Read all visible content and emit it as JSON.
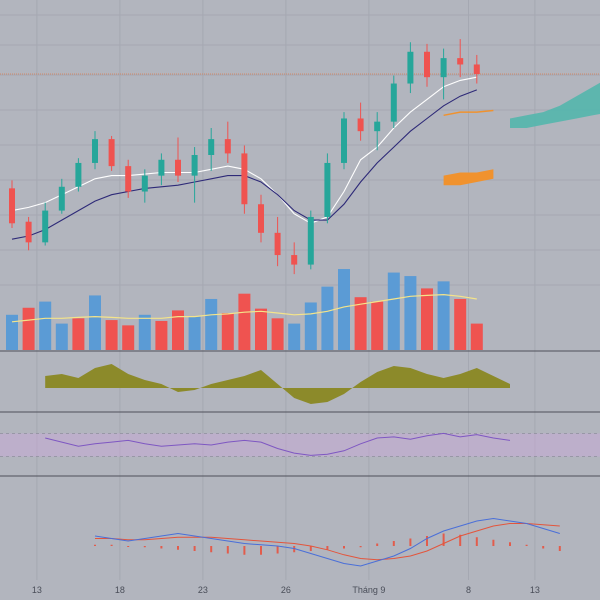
{
  "colors": {
    "background": "#b2b5be",
    "grid": "#a5a8b2",
    "separator": "#4d5059",
    "up": "#26a69a",
    "down": "#ef5350",
    "volume_up": "#5b9bd5",
    "volume_down": "#ef5350",
    "volume_ma": "#f4e48a",
    "kijun": "#ffffff",
    "tenkan": "#2e2a78",
    "price_line": "#e07b4a",
    "cloud_green": "#4db6ac",
    "cloud_orange": "#f0922e",
    "osc_fill": "#8c8a2a",
    "rsi_line": "#7e57c2",
    "rsi_band": "#c6a9d6",
    "macd_line": "#4a6fd8",
    "signal_line": "#e3553c",
    "macd_hist": "#e25c4c",
    "label_text": "#4a4e59"
  },
  "chart_data": {
    "type": "candlestick",
    "indicators": [
      "volume",
      "volume-ma",
      "ichimoku",
      "oscillator",
      "rsi",
      "macd"
    ],
    "grid": true,
    "x_axis_labels": [
      {
        "text": "13",
        "index": 1.5
      },
      {
        "text": "18",
        "index": 6.5
      },
      {
        "text": "23",
        "index": 11.5
      },
      {
        "text": "26",
        "index": 16.5
      },
      {
        "text": "Tháng 9",
        "index": 21.5
      },
      {
        "text": "8",
        "index": 27.5
      },
      {
        "text": "13",
        "index": 31.5
      }
    ],
    "candles": [
      {
        "o": 214,
        "h": 219,
        "l": 189,
        "c": 192
      },
      {
        "o": 193,
        "h": 196,
        "l": 175,
        "c": 180
      },
      {
        "o": 180,
        "h": 205,
        "l": 178,
        "c": 200
      },
      {
        "o": 200,
        "h": 220,
        "l": 198,
        "c": 215
      },
      {
        "o": 215,
        "h": 233,
        "l": 212,
        "c": 230
      },
      {
        "o": 230,
        "h": 250,
        "l": 226,
        "c": 245
      },
      {
        "o": 245,
        "h": 247,
        "l": 225,
        "c": 228
      },
      {
        "o": 228,
        "h": 232,
        "l": 208,
        "c": 212
      },
      {
        "o": 212,
        "h": 226,
        "l": 205,
        "c": 222
      },
      {
        "o": 222,
        "h": 236,
        "l": 216,
        "c": 232
      },
      {
        "o": 232,
        "h": 246,
        "l": 218,
        "c": 222
      },
      {
        "o": 222,
        "h": 240,
        "l": 205,
        "c": 235
      },
      {
        "o": 235,
        "h": 252,
        "l": 225,
        "c": 245
      },
      {
        "o": 245,
        "h": 256,
        "l": 230,
        "c": 236
      },
      {
        "o": 236,
        "h": 241,
        "l": 198,
        "c": 204
      },
      {
        "o": 204,
        "h": 210,
        "l": 180,
        "c": 186
      },
      {
        "o": 186,
        "h": 196,
        "l": 165,
        "c": 172
      },
      {
        "o": 172,
        "h": 180,
        "l": 160,
        "c": 166
      },
      {
        "o": 166,
        "h": 200,
        "l": 163,
        "c": 196
      },
      {
        "o": 196,
        "h": 236,
        "l": 192,
        "c": 230
      },
      {
        "o": 230,
        "h": 262,
        "l": 226,
        "c": 258
      },
      {
        "o": 258,
        "h": 268,
        "l": 244,
        "c": 250
      },
      {
        "o": 250,
        "h": 262,
        "l": 238,
        "c": 256
      },
      {
        "o": 256,
        "h": 285,
        "l": 252,
        "c": 280
      },
      {
        "o": 280,
        "h": 306,
        "l": 274,
        "c": 300
      },
      {
        "o": 300,
        "h": 305,
        "l": 278,
        "c": 284
      },
      {
        "o": 284,
        "h": 302,
        "l": 270,
        "c": 296
      },
      {
        "o": 296,
        "h": 308,
        "l": 284,
        "c": 292
      },
      {
        "o": 292,
        "h": 298,
        "l": 280,
        "c": 286
      }
    ],
    "volume": [
      {
        "v": 40,
        "dir": "up"
      },
      {
        "v": 48,
        "dir": "down"
      },
      {
        "v": 55,
        "dir": "up"
      },
      {
        "v": 30,
        "dir": "up"
      },
      {
        "v": 36,
        "dir": "down"
      },
      {
        "v": 62,
        "dir": "up"
      },
      {
        "v": 34,
        "dir": "down"
      },
      {
        "v": 28,
        "dir": "down"
      },
      {
        "v": 40,
        "dir": "up"
      },
      {
        "v": 33,
        "dir": "down"
      },
      {
        "v": 45,
        "dir": "down"
      },
      {
        "v": 38,
        "dir": "up"
      },
      {
        "v": 58,
        "dir": "up"
      },
      {
        "v": 42,
        "dir": "down"
      },
      {
        "v": 64,
        "dir": "down"
      },
      {
        "v": 47,
        "dir": "down"
      },
      {
        "v": 36,
        "dir": "down"
      },
      {
        "v": 30,
        "dir": "up"
      },
      {
        "v": 54,
        "dir": "up"
      },
      {
        "v": 72,
        "dir": "up"
      },
      {
        "v": 92,
        "dir": "up"
      },
      {
        "v": 60,
        "dir": "down"
      },
      {
        "v": 55,
        "dir": "down"
      },
      {
        "v": 88,
        "dir": "up"
      },
      {
        "v": 84,
        "dir": "up"
      },
      {
        "v": 70,
        "dir": "down"
      },
      {
        "v": 78,
        "dir": "up"
      },
      {
        "v": 58,
        "dir": "down"
      },
      {
        "v": 30,
        "dir": "down"
      }
    ],
    "volume_ma": [
      32,
      34,
      36,
      36,
      37,
      38,
      37,
      36,
      36,
      36,
      38,
      38,
      40,
      41,
      43,
      44,
      42,
      40,
      41,
      44,
      49,
      52,
      55,
      58,
      61,
      62,
      63,
      61,
      58
    ],
    "kijun": [
      200,
      202,
      205,
      210,
      215,
      220,
      222,
      222,
      223,
      224,
      224,
      224,
      226,
      228,
      226,
      220,
      210,
      198,
      192,
      196,
      212,
      232,
      240,
      252,
      262,
      270,
      278,
      282,
      284
    ],
    "tenkan": [
      182,
      184,
      188,
      194,
      200,
      206,
      210,
      212,
      214,
      215,
      216,
      218,
      220,
      222,
      222,
      218,
      210,
      200,
      194,
      194,
      204,
      218,
      230,
      240,
      250,
      258,
      266,
      272,
      276
    ],
    "cloud_a": [
      258,
      260,
      262,
      266,
      272,
      278,
      284,
      290,
      294,
      296
    ],
    "cloud_b": [
      252,
      252,
      254,
      256,
      258,
      260,
      262,
      262,
      264,
      266
    ],
    "future_line": [
      260,
      262,
      262,
      263
    ],
    "oscillator": [
      12,
      14,
      10,
      20,
      24,
      14,
      8,
      4,
      -4,
      -2,
      4,
      8,
      12,
      18,
      4,
      -10,
      -16,
      -14,
      -6,
      6,
      16,
      22,
      20,
      14,
      10,
      14,
      20,
      12,
      4
    ],
    "rsi": [
      62,
      55,
      48,
      52,
      55,
      58,
      52,
      48,
      50,
      52,
      50,
      55,
      58,
      55,
      44,
      36,
      32,
      34,
      40,
      52,
      62,
      64,
      60,
      66,
      70,
      64,
      68,
      62,
      58
    ],
    "macd": [
      8,
      6,
      4,
      6,
      8,
      10,
      8,
      6,
      4,
      2,
      1,
      0,
      -2,
      -6,
      -10,
      -14,
      -16,
      -12,
      -8,
      -2,
      6,
      12,
      16,
      20,
      22,
      20,
      18,
      14,
      10
    ],
    "signal": [
      6,
      6,
      5,
      5,
      6,
      7,
      7,
      7,
      6,
      5,
      4,
      3,
      2,
      0,
      -3,
      -7,
      -10,
      -11,
      -10,
      -8,
      -4,
      2,
      8,
      12,
      16,
      18,
      18,
      17,
      16
    ],
    "macd_hist": [
      1,
      1,
      0,
      -1,
      -2,
      -3,
      -4,
      -5,
      -6,
      -7,
      -7,
      -6,
      -5,
      -4,
      -3,
      -2,
      -1,
      2,
      4,
      6,
      8,
      10,
      9,
      7,
      5,
      3,
      1,
      -2,
      -4
    ]
  }
}
